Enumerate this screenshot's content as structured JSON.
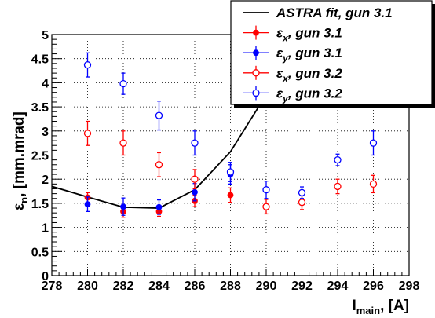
{
  "chart_data": {
    "type": "scatter",
    "xlabel": {
      "main": "I",
      "sub": "main",
      "unit": ", [A]"
    },
    "ylabel": {
      "main": "ε",
      "sub": "n",
      "unit": ", [mm.mrad]"
    },
    "xlim": [
      278,
      298
    ],
    "ylim": [
      0,
      5
    ],
    "x_ticks": [
      278,
      280,
      282,
      284,
      286,
      288,
      290,
      292,
      294,
      296,
      298
    ],
    "y_ticks": [
      0,
      0.5,
      1,
      1.5,
      2,
      2.5,
      3,
      3.5,
      4,
      4.5,
      5
    ],
    "grid": true,
    "legend_position": "top-right",
    "series": [
      {
        "name": "ASTRA fit, gun 3.1",
        "kind": "line",
        "color": "#000000",
        "x": [
          278,
          280,
          282,
          284,
          286,
          288,
          290,
          291.4
        ],
        "y": [
          1.85,
          1.63,
          1.42,
          1.4,
          1.78,
          2.57,
          3.75,
          5.0
        ]
      },
      {
        "name": "εx, gun 3.1",
        "symbol": "ε",
        "sub": "x",
        "rest": ", gun 3.1",
        "kind": "points",
        "marker": "filled",
        "color": "#ff0000",
        "x": [
          280,
          282,
          284,
          286,
          288
        ],
        "y": [
          1.62,
          1.33,
          1.33,
          1.55,
          1.67
        ],
        "err": [
          0.1,
          0.12,
          0.1,
          0.12,
          0.15
        ]
      },
      {
        "name": "εy, gun 3.1",
        "symbol": "ε",
        "sub": "y",
        "rest": ", gun 3.1",
        "kind": "points",
        "marker": "filled",
        "color": "#0000ff",
        "x": [
          280,
          282,
          284,
          286,
          288
        ],
        "y": [
          1.48,
          1.43,
          1.42,
          1.73,
          2.1
        ],
        "err": [
          0.15,
          0.18,
          0.15,
          0.18,
          0.2
        ]
      },
      {
        "name": "εx, gun 3.2",
        "symbol": "ε",
        "sub": "x",
        "rest": ", gun 3.2",
        "kind": "points",
        "marker": "open",
        "color": "#ff0000",
        "x": [
          280,
          282,
          284,
          286,
          290,
          292,
          294,
          296
        ],
        "y": [
          2.95,
          2.75,
          2.3,
          2.0,
          1.43,
          1.52,
          1.85,
          1.9
        ],
        "err": [
          0.25,
          0.25,
          0.25,
          0.2,
          0.15,
          0.15,
          0.15,
          0.18
        ]
      },
      {
        "name": "εy, gun 3.2",
        "symbol": "ε",
        "sub": "y",
        "rest": ", gun 3.2",
        "kind": "points",
        "marker": "open",
        "color": "#0000ff",
        "x": [
          280,
          282,
          284,
          286,
          288,
          290,
          292,
          294,
          296
        ],
        "y": [
          4.37,
          3.98,
          3.32,
          2.75,
          2.15,
          1.78,
          1.72,
          2.4,
          2.75
        ],
        "err": [
          0.25,
          0.22,
          0.3,
          0.25,
          0.2,
          0.18,
          0.12,
          0.12,
          0.25
        ]
      }
    ]
  }
}
